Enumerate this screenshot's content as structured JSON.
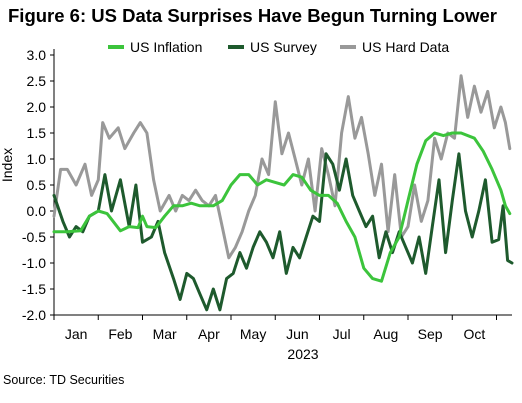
{
  "title": "Figure 6: US Data Surprises Have Begun Turning Lower",
  "source": "Source: TD Securities",
  "chart_data": {
    "type": "line",
    "ylabel": "Index",
    "xlabel": "2023",
    "ylim": [
      -2.0,
      3.0
    ],
    "yticks": [
      -2.0,
      -1.5,
      -1.0,
      -0.5,
      0.0,
      0.5,
      1.0,
      1.5,
      2.0,
      2.5,
      3.0
    ],
    "ytick_labels": [
      "-2.0",
      "-1.5",
      "-1.0",
      "-0.5",
      "0.0",
      "0.5",
      "1.0",
      "1.5",
      "2.0",
      "2.5",
      "3.0"
    ],
    "xlim": [
      0,
      10.35
    ],
    "month_labels": [
      "Jan",
      "Feb",
      "Mar",
      "Apr",
      "May",
      "Jun",
      "Jul",
      "Aug",
      "Sep",
      "Oct"
    ],
    "legend_position": "top",
    "grid": false,
    "series": [
      {
        "name": "US Inflation",
        "color": "#3cc43c",
        "x": [
          0,
          0.3,
          0.6,
          0.8,
          1.0,
          1.2,
          1.5,
          1.7,
          1.9,
          2.0,
          2.1,
          2.3,
          2.5,
          2.7,
          2.9,
          3.1,
          3.3,
          3.6,
          3.8,
          4.0,
          4.2,
          4.4,
          4.6,
          4.8,
          5.0,
          5.2,
          5.4,
          5.6,
          5.8,
          6.0,
          6.2,
          6.4,
          6.6,
          6.8,
          7.0,
          7.2,
          7.4,
          7.6,
          7.8,
          8.0,
          8.2,
          8.4,
          8.6,
          8.8,
          9.0,
          9.2,
          9.5,
          9.7,
          9.9,
          10.1,
          10.2,
          10.3
        ],
        "y": [
          -0.4,
          -0.4,
          -0.38,
          -0.1,
          0.0,
          -0.05,
          -0.38,
          -0.3,
          -0.32,
          -0.1,
          -0.3,
          -0.32,
          -0.1,
          0.1,
          0.1,
          0.15,
          0.1,
          0.1,
          0.2,
          0.5,
          0.7,
          0.7,
          0.5,
          0.6,
          0.55,
          0.5,
          0.7,
          0.65,
          0.4,
          0.3,
          0.3,
          0.15,
          -0.2,
          -0.5,
          -1.1,
          -1.3,
          -1.35,
          -0.8,
          -0.5,
          0.2,
          0.9,
          1.35,
          1.5,
          1.45,
          1.5,
          1.5,
          1.4,
          1.15,
          0.8,
          0.4,
          0.1,
          -0.05
        ]
      },
      {
        "name": "US Survey",
        "color": "#1e5a2d",
        "x": [
          0,
          0.2,
          0.35,
          0.5,
          0.65,
          0.8,
          1.0,
          1.15,
          1.3,
          1.5,
          1.7,
          1.85,
          2.0,
          2.2,
          2.35,
          2.5,
          2.7,
          2.85,
          3.0,
          3.15,
          3.3,
          3.45,
          3.6,
          3.75,
          3.9,
          4.05,
          4.2,
          4.35,
          4.5,
          4.65,
          4.8,
          4.95,
          5.1,
          5.25,
          5.4,
          5.55,
          5.7,
          5.85,
          6.0,
          6.15,
          6.3,
          6.45,
          6.6,
          6.75,
          6.9,
          7.05,
          7.2,
          7.35,
          7.5,
          7.65,
          7.8,
          7.95,
          8.1,
          8.25,
          8.4,
          8.55,
          8.7,
          8.85,
          9.0,
          9.15,
          9.3,
          9.45,
          9.6,
          9.75,
          9.9,
          10.05,
          10.15,
          10.25,
          10.35
        ],
        "y": [
          0.3,
          -0.2,
          -0.5,
          -0.3,
          -0.4,
          -0.1,
          0.0,
          0.7,
          0.0,
          0.6,
          -0.3,
          0.5,
          -0.6,
          -0.5,
          -0.2,
          -0.8,
          -1.3,
          -1.7,
          -1.2,
          -1.3,
          -1.6,
          -1.9,
          -1.5,
          -1.9,
          -1.3,
          -1.2,
          -0.8,
          -1.1,
          -0.7,
          -0.4,
          -0.6,
          -0.9,
          -0.4,
          -1.2,
          -0.7,
          -0.9,
          -0.5,
          -0.1,
          -0.2,
          1.1,
          0.9,
          0.4,
          1.0,
          0.3,
          0.0,
          -0.3,
          -0.1,
          -0.9,
          -0.4,
          -0.8,
          -0.4,
          -0.7,
          -1.0,
          -0.5,
          -1.2,
          -0.3,
          0.6,
          -0.8,
          0.2,
          1.1,
          0.0,
          -0.5,
          0.0,
          0.6,
          -0.6,
          -0.55,
          0.1,
          -0.95,
          -1.0
        ]
      },
      {
        "name": "US Hard Data",
        "color": "#999999",
        "x": [
          0,
          0.15,
          0.3,
          0.5,
          0.7,
          0.85,
          1.0,
          1.1,
          1.25,
          1.45,
          1.6,
          1.8,
          1.95,
          2.1,
          2.25,
          2.4,
          2.6,
          2.75,
          2.9,
          3.05,
          3.2,
          3.35,
          3.5,
          3.65,
          3.8,
          3.95,
          4.1,
          4.25,
          4.4,
          4.55,
          4.7,
          4.85,
          5.0,
          5.15,
          5.3,
          5.45,
          5.6,
          5.75,
          5.9,
          6.05,
          6.2,
          6.35,
          6.5,
          6.65,
          6.8,
          6.95,
          7.1,
          7.25,
          7.4,
          7.55,
          7.7,
          7.85,
          8.0,
          8.15,
          8.3,
          8.45,
          8.6,
          8.75,
          8.9,
          9.05,
          9.2,
          9.35,
          9.5,
          9.65,
          9.8,
          9.95,
          10.1,
          10.2,
          10.3
        ],
        "y": [
          -0.1,
          0.8,
          0.8,
          0.5,
          0.9,
          0.3,
          0.6,
          1.7,
          1.4,
          1.6,
          1.2,
          1.5,
          1.7,
          1.5,
          0.6,
          0.0,
          0.3,
          0.0,
          0.3,
          0.2,
          0.4,
          0.2,
          0.1,
          0.3,
          -0.3,
          -0.9,
          -0.7,
          -0.4,
          0.0,
          0.3,
          1.0,
          0.7,
          2.1,
          1.1,
          1.5,
          1.0,
          0.5,
          1.0,
          0.0,
          1.2,
          0.7,
          0.1,
          1.5,
          2.2,
          1.4,
          1.8,
          1.1,
          0.3,
          0.9,
          -0.4,
          0.7,
          -0.5,
          -0.3,
          0.5,
          -0.2,
          0.2,
          1.4,
          1.0,
          1.5,
          1.4,
          2.6,
          1.8,
          2.4,
          1.9,
          2.3,
          1.6,
          2.0,
          1.7,
          1.2
        ]
      }
    ]
  }
}
